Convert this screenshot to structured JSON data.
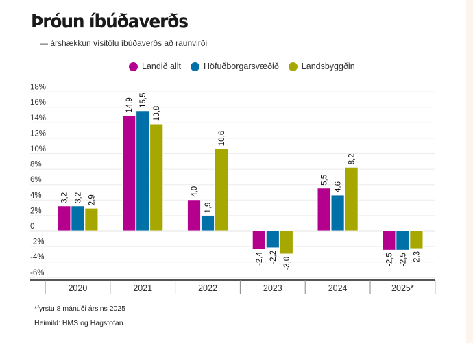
{
  "title": "Þróun íbúðaverðs",
  "subtitle": "— árshækkun vísitölu íbúðaverðs að raunvirði",
  "footnote": "*fyrstu 8 mánuði ársins 2025",
  "source": "Heimild: HMS og Hagstofan.",
  "chart_data": {
    "type": "bar",
    "title": "Þróun íbúðaverðs",
    "subtitle": "— árshækkun vísitölu íbúðaverðs að raunvirði",
    "xlabel": "",
    "ylabel": "",
    "categories": [
      "2020",
      "2021",
      "2022",
      "2023",
      "2024",
      "2025*"
    ],
    "series": [
      {
        "name": "Landið allt",
        "color": "#b5008e",
        "values": [
          3.2,
          14.9,
          4.0,
          -2.4,
          5.5,
          -2.5
        ],
        "labels": [
          "3,2",
          "14,9",
          "4,0",
          "-2,4",
          "5,5",
          "-2,5"
        ]
      },
      {
        "name": "Höfuðborgarsvæðið",
        "color": "#0071a8",
        "values": [
          3.2,
          15.5,
          1.9,
          -2.2,
          4.6,
          -2.5
        ],
        "labels": [
          "3,2",
          "15,5",
          "1,9",
          "-2,2",
          "4,6",
          "-2,5"
        ]
      },
      {
        "name": "Landsbyggðin",
        "color": "#a6a800",
        "values": [
          2.9,
          13.8,
          10.6,
          -3.0,
          8.2,
          -2.3
        ],
        "labels": [
          "2,9",
          "13,8",
          "10,6",
          "-3,0",
          "8,2",
          "-2,3"
        ]
      }
    ],
    "yticks": [
      18,
      16,
      14,
      12,
      10,
      8,
      6,
      4,
      2,
      0,
      -2,
      -4,
      -6
    ],
    "ytick_labels": [
      "18%",
      "16%",
      "14%",
      "12%",
      "10%",
      "8%",
      "6%",
      "4%",
      "2%",
      "0",
      "-2%",
      "-4%",
      "-6%"
    ],
    "ylim": [
      -6.5,
      18
    ],
    "grid": true,
    "legend_position": "top-center"
  }
}
